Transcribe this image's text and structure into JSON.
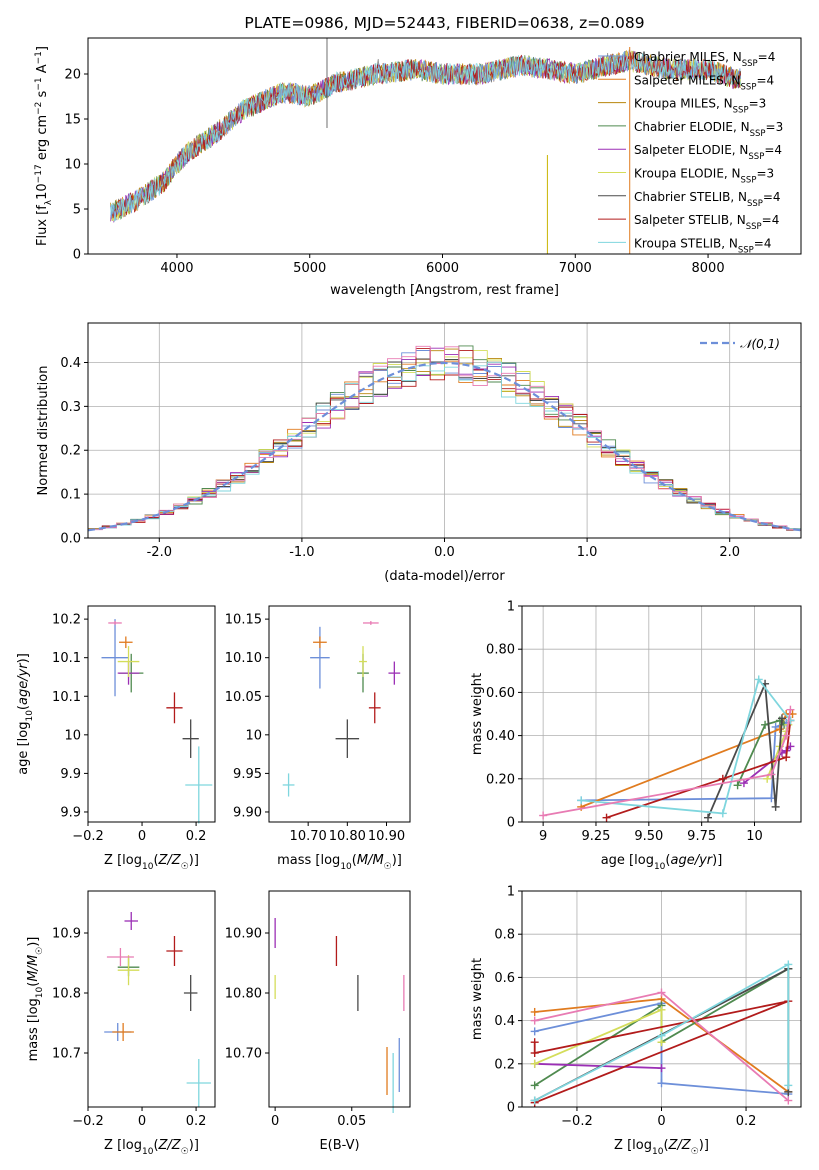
{
  "colors": [
    "#6d8fd9",
    "#e07b1f",
    "#b8860b",
    "#4f8a4f",
    "#9b2fb5",
    "#d4dd5a",
    "#4a4a4a",
    "#b21b1b",
    "#7fd6de"
  ],
  "colors_extra": {
    "pink": "#e87bb3",
    "pink_name": "pink"
  },
  "chart_data": [
    {
      "id": "spectrum",
      "type": "line",
      "title": "PLATE=0986, MJD=52443, FIBERID=0638, z=0.089",
      "xlabel": "wavelength [Angstrom, rest frame]",
      "ylabel": "Flux [f_λ10^-17 erg cm^-2 s^-1 A^-1]",
      "xlim": [
        3330,
        8700
      ],
      "ylim": [
        0,
        24
      ],
      "xticks": [
        4000,
        5000,
        6000,
        7000,
        8000
      ],
      "yticks": [
        0,
        5,
        10,
        15,
        20
      ],
      "legend_position": "top-right",
      "series": [
        {
          "name": "Chabrier MILES, N_SSP=4"
        },
        {
          "name": "Salpeter MILES, N_SSP=4"
        },
        {
          "name": "Kroupa MILES, N_SSP=3"
        },
        {
          "name": "Chabrier ELODIE, N_SSP=3"
        },
        {
          "name": "Salpeter ELODIE, N_SSP=4"
        },
        {
          "name": "Kroupa ELODIE, N_SSP=3"
        },
        {
          "name": "Chabrier STELIB, N_SSP=4"
        },
        {
          "name": "Salpeter STELIB, N_SSP=4"
        },
        {
          "name": "Kroupa STELIB, N_SSP=4"
        }
      ],
      "continuum_x": [
        3500,
        3700,
        3900,
        4000,
        4100,
        4300,
        4500,
        4800,
        5000,
        5200,
        5500,
        5800,
        6000,
        6300,
        6600,
        7000,
        7400,
        7700,
        8000,
        8200
      ],
      "continuum_y": [
        4.5,
        6.0,
        8.0,
        10.0,
        11.5,
        13.5,
        16.0,
        18.0,
        17.5,
        19.0,
        20.0,
        20.5,
        20.0,
        20.0,
        21.0,
        20.0,
        21.5,
        20.5,
        20.5,
        19.5
      ]
    },
    {
      "id": "residuals",
      "type": "line",
      "xlabel": "(data-model)/error",
      "ylabel": "Normed distribution",
      "xlim": [
        -2.5,
        2.5
      ],
      "ylim": [
        0,
        0.49
      ],
      "xticks": [
        -2,
        -1,
        0,
        1,
        2
      ],
      "yticks": [
        0.0,
        0.1,
        0.2,
        0.3,
        0.4
      ],
      "grid": true,
      "legend_position": "top-right",
      "legend": "𝒩(0,1)"
    },
    {
      "id": "age-vs-Z",
      "type": "scatter",
      "xlabel": "Z [log10(Z/Z☉)]",
      "ylabel": "age  [log10(age/yr)]",
      "xlim": [
        -0.2,
        0.27
      ],
      "ylim": [
        9.887,
        10.167
      ],
      "xticks": [
        -0.2,
        0.0,
        0.2
      ],
      "yticks": [
        9.9,
        9.95,
        10.0,
        10.05,
        10.1,
        10.15
      ],
      "points": [
        {
          "x": -0.1,
          "y": 10.1,
          "xerr": 0.1,
          "yerr": 0.1,
          "color": 0
        },
        {
          "x": -0.06,
          "y": 10.12,
          "xerr": 0.05,
          "yerr": 0.015,
          "color": 1
        },
        {
          "x": -0.04,
          "y": 10.08,
          "xerr": 0.09,
          "yerr": 0.05,
          "color": 3
        },
        {
          "x": -0.05,
          "y": 10.08,
          "xerr": 0.08,
          "yerr": 0.03,
          "color": 4
        },
        {
          "x": -0.05,
          "y": 10.095,
          "xerr": 0.08,
          "yerr": 0.04,
          "color": 5
        },
        {
          "x": 0.12,
          "y": 10.035,
          "xerr": 0.06,
          "yerr": 0.04,
          "color": 7
        },
        {
          "x": 0.18,
          "y": 9.995,
          "xerr": 0.06,
          "yerr": 0.05,
          "color": 6
        },
        {
          "x": 0.21,
          "y": 9.935,
          "xerr": 0.1,
          "yerr": 0.1,
          "color": 8
        },
        {
          "x": -0.1,
          "y": 10.145,
          "xerr": 0.05,
          "yerr": 0.005,
          "color": "pink"
        }
      ]
    },
    {
      "id": "age-vs-mass",
      "type": "scatter",
      "xlabel": "mass [log10(M/M☉)]",
      "ylabel": "",
      "xlim": [
        10.6,
        10.96
      ],
      "ylim": [
        9.887,
        10.167
      ],
      "xticks": [
        10.7,
        10.8,
        10.9
      ],
      "yticks": [
        9.9,
        9.95,
        10.0,
        10.05,
        10.1,
        10.15
      ],
      "points": [
        {
          "x": 10.73,
          "y": 10.1,
          "xerr": 0.05,
          "yerr": 0.08,
          "color": 0
        },
        {
          "x": 10.73,
          "y": 10.12,
          "xerr": 0.035,
          "yerr": 0.015,
          "color": 1
        },
        {
          "x": 10.84,
          "y": 10.08,
          "xerr": 0.03,
          "yerr": 0.05,
          "color": 3
        },
        {
          "x": 10.92,
          "y": 10.08,
          "xerr": 0.03,
          "yerr": 0.03,
          "color": 4
        },
        {
          "x": 10.84,
          "y": 10.095,
          "xerr": 0.02,
          "yerr": 0.04,
          "color": 5
        },
        {
          "x": 10.87,
          "y": 10.035,
          "xerr": 0.03,
          "yerr": 0.04,
          "color": 7
        },
        {
          "x": 10.8,
          "y": 9.995,
          "xerr": 0.06,
          "yerr": 0.05,
          "color": 6
        },
        {
          "x": 10.65,
          "y": 9.935,
          "xerr": 0.03,
          "yerr": 0.03,
          "color": 8
        },
        {
          "x": 10.86,
          "y": 10.145,
          "xerr": 0.04,
          "yerr": 0.005,
          "color": "pink"
        }
      ]
    },
    {
      "id": "mass-weight-vs-age",
      "type": "line",
      "xlabel": "age  [log10(age/yr)]",
      "ylabel": "mass weight",
      "xlim": [
        8.9,
        10.22
      ],
      "ylim": [
        0.0,
        1.0
      ],
      "xticks": [
        9.0,
        9.25,
        9.5,
        9.75,
        10.0
      ],
      "yticks": [
        0.0,
        0.2,
        0.4,
        0.6,
        0.8,
        1.0
      ],
      "grid": true,
      "series": [
        {
          "color": 0,
          "x": [
            9.18,
            10.08,
            10.1,
            10.15
          ],
          "y": [
            0.1,
            0.11,
            0.44,
            0.46
          ]
        },
        {
          "color": 1,
          "x": [
            9.18,
            10.12,
            10.15,
            10.18
          ],
          "y": [
            0.07,
            0.43,
            0.5,
            0.5
          ]
        },
        {
          "color": 3,
          "x": [
            9.92,
            10.05,
            10.12,
            10.14
          ],
          "y": [
            0.17,
            0.45,
            0.47,
            0.45
          ]
        },
        {
          "color": 4,
          "x": [
            9.95,
            10.13,
            10.15,
            10.17
          ],
          "y": [
            0.18,
            0.32,
            0.33,
            0.35
          ]
        },
        {
          "color": 5,
          "x": [
            10.06,
            10.12,
            10.15,
            10.16
          ],
          "y": [
            0.2,
            0.35,
            0.42,
            0.45
          ]
        },
        {
          "color": 6,
          "x": [
            9.78,
            10.05,
            10.1,
            10.13
          ],
          "y": [
            0.02,
            0.64,
            0.07,
            0.48
          ]
        },
        {
          "color": 7,
          "x": [
            9.3,
            9.85,
            10.15,
            10.17
          ],
          "y": [
            0.02,
            0.2,
            0.3,
            0.47
          ]
        },
        {
          "color": 8,
          "x": [
            9.18,
            9.85,
            10.02,
            10.17
          ],
          "y": [
            0.1,
            0.04,
            0.66,
            0.47
          ]
        },
        {
          "color": "pink",
          "x": [
            9.0,
            10.08,
            10.15,
            10.17
          ],
          "y": [
            0.03,
            0.22,
            0.4,
            0.52
          ]
        }
      ]
    },
    {
      "id": "mass-vs-Z",
      "type": "scatter",
      "xlabel": "Z [log10(Z/Z☉)]",
      "ylabel": "mass [log10(M/M☉)]",
      "xlim": [
        -0.2,
        0.27
      ],
      "ylim": [
        10.61,
        10.97
      ],
      "xticks": [
        -0.2,
        0.0,
        0.2
      ],
      "yticks": [
        10.7,
        10.8,
        10.9
      ],
      "points": [
        {
          "x": -0.09,
          "y": 10.735,
          "xerr": 0.1,
          "yerr": 0.03,
          "color": 0
        },
        {
          "x": -0.07,
          "y": 10.735,
          "xerr": 0.08,
          "yerr": 0.03,
          "color": 1
        },
        {
          "x": -0.05,
          "y": 10.843,
          "xerr": 0.08,
          "yerr": 0.03,
          "color": 3
        },
        {
          "x": -0.04,
          "y": 10.92,
          "xerr": 0.05,
          "yerr": 0.03,
          "color": 4
        },
        {
          "x": -0.05,
          "y": 10.838,
          "xerr": 0.08,
          "yerr": 0.05,
          "color": 5
        },
        {
          "x": 0.12,
          "y": 10.87,
          "xerr": 0.06,
          "yerr": 0.05,
          "color": 7
        },
        {
          "x": 0.18,
          "y": 10.8,
          "xerr": 0.05,
          "yerr": 0.06,
          "color": 6
        },
        {
          "x": 0.21,
          "y": 10.65,
          "xerr": 0.09,
          "yerr": 0.08,
          "color": 8
        },
        {
          "x": -0.08,
          "y": 10.86,
          "xerr": 0.1,
          "yerr": 0.03,
          "color": "pink"
        }
      ]
    },
    {
      "id": "mass-vs-EBV",
      "type": "scatter",
      "xlabel": "E(B-V)",
      "ylabel": "",
      "xlim": [
        -0.004,
        0.088
      ],
      "ylim": [
        10.61,
        10.97
      ],
      "xticks": [
        0.0,
        0.05
      ],
      "yticks": [
        10.7,
        10.8,
        10.9
      ],
      "points": [
        {
          "x": 0.081,
          "y": 10.68,
          "yerr": 0.09,
          "color": 0
        },
        {
          "x": 0.0,
          "y": 10.9,
          "yerr": 0.05,
          "color": 4
        },
        {
          "x": 0.0,
          "y": 10.81,
          "yerr": 0.04,
          "color": 5
        },
        {
          "x": 0.073,
          "y": 10.67,
          "yerr": 0.08,
          "color": 1
        },
        {
          "x": 0.04,
          "y": 10.87,
          "yerr": 0.05,
          "color": 7
        },
        {
          "x": 0.054,
          "y": 10.8,
          "yerr": 0.06,
          "color": 6
        },
        {
          "x": 0.077,
          "y": 10.65,
          "yerr": 0.1,
          "color": 8
        },
        {
          "x": 0.084,
          "y": 10.8,
          "yerr": 0.06,
          "color": "pink"
        }
      ]
    },
    {
      "id": "mass-weight-vs-Z",
      "type": "line",
      "xlabel": "Z [log10(Z/Z☉)]",
      "ylabel": "mass weight",
      "xlim": [
        -0.33,
        0.33
      ],
      "ylim": [
        0.0,
        1.0
      ],
      "xticks": [
        -0.2,
        0.0,
        0.2
      ],
      "yticks": [
        0.0,
        0.2,
        0.4,
        0.6,
        0.8,
        1.0
      ],
      "grid": true,
      "series": [
        {
          "color": 0,
          "x": [
            -0.3,
            0.0,
            0.0,
            0.3
          ],
          "y": [
            0.35,
            0.48,
            0.11,
            0.06
          ]
        },
        {
          "color": 1,
          "x": [
            -0.3,
            0.0,
            0.3
          ],
          "y": [
            0.44,
            0.5,
            0.07
          ]
        },
        {
          "color": 3,
          "x": [
            -0.3,
            0.0,
            0.0,
            0.3
          ],
          "y": [
            0.1,
            0.47,
            0.3,
            0.64
          ]
        },
        {
          "color": 4,
          "x": [
            -0.3,
            0.0
          ],
          "y": [
            0.2,
            0.18
          ]
        },
        {
          "color": 5,
          "x": [
            -0.3,
            0.0,
            0.0
          ],
          "y": [
            0.2,
            0.45,
            0.3
          ]
        },
        {
          "color": 6,
          "x": [
            -0.3,
            0.3,
            0.3
          ],
          "y": [
            0.03,
            0.64,
            0.07
          ]
        },
        {
          "color": 7,
          "x": [
            -0.3,
            0.3,
            -0.3,
            -0.3
          ],
          "y": [
            0.02,
            0.49,
            0.25,
            0.3
          ]
        },
        {
          "color": 8,
          "x": [
            -0.3,
            0.0,
            0.3,
            0.3
          ],
          "y": [
            0.03,
            0.33,
            0.66,
            0.1
          ]
        },
        {
          "color": "pink",
          "x": [
            -0.3,
            0.0,
            0.3
          ],
          "y": [
            0.4,
            0.53,
            0.03
          ]
        }
      ]
    }
  ],
  "labels": {
    "residual_legend": "𝒩(0,1)"
  }
}
